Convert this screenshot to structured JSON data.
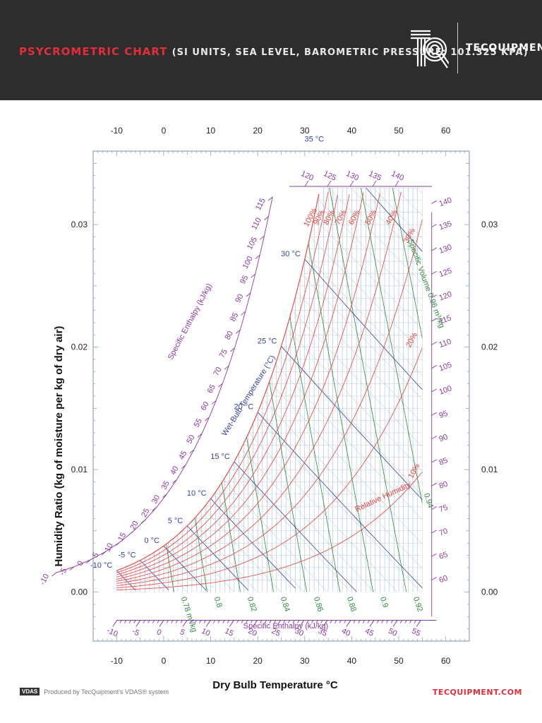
{
  "header": {
    "title_main": "PSYCROMETRIC CHART",
    "title_sub": "(SI UNITS, SEA LEVEL, BAROMETRIC PRESSURE: 101.325 KPA)",
    "brand": "TECQUIPMENT"
  },
  "footer": {
    "vdas_label": "VDAS",
    "produced_by": "Produced by TecQuipment's VDAS® system",
    "website": "TECQUIPMENT.COM"
  },
  "chart_data": {
    "type": "psychrometric",
    "xlabel": "Dry Bulb Temperature °C",
    "ylabel": "Humidity Ratio (kg of moisture per kg of dry air)",
    "xlim": [
      -15,
      65
    ],
    "ylim": [
      -0.004,
      0.036
    ],
    "x_ticks": [
      -10,
      0,
      10,
      20,
      30,
      40,
      50,
      60
    ],
    "y_ticks": [
      0.0,
      0.01,
      0.02,
      0.03
    ],
    "y_tick_labels": [
      "0.00",
      "0.01",
      "0.02",
      "0.03"
    ],
    "dry_bulb_range": [
      -10,
      55
    ],
    "w_max": 0.033,
    "pressure_kpa": 101.325,
    "relative_humidity": {
      "values": [
        100,
        90,
        80,
        70,
        60,
        50,
        40,
        30,
        20,
        10
      ],
      "labels": [
        "100%",
        "90%",
        "80%",
        "70%",
        "60%",
        "50%",
        "40%",
        "30%",
        "20%",
        "10%"
      ],
      "axis_label": "Relative Humidity"
    },
    "wet_bulb": {
      "values": [
        -10,
        -5,
        0,
        5,
        10,
        15,
        20,
        25,
        30,
        35
      ],
      "labels": [
        "-10 °C",
        "-5 °C",
        "0 °C",
        "5 °C",
        "10 °C",
        "15 °C",
        "20 °C",
        "25 °C",
        "30 °C",
        "35 °C"
      ],
      "axis_label": "Wet-Bulb Temperature (°C)"
    },
    "specific_volume": {
      "values": [
        0.78,
        0.8,
        0.82,
        0.84,
        0.86,
        0.88,
        0.9,
        0.92,
        0.94,
        0.96
      ],
      "labels": [
        "0.78 m³/kg",
        "0.8",
        "0.82",
        "0.84",
        "0.86",
        "0.88",
        "0.9",
        "0.92",
        "0.94",
        "Specific Volume 0.96 m³/kg"
      ]
    },
    "enthalpy": {
      "axis_label": "Specific Enthalpy (kJ/kg)",
      "bottom_scale": [
        -10,
        -5,
        0,
        5,
        10,
        15,
        20,
        25,
        30,
        35,
        40,
        45,
        50,
        55
      ],
      "right_scale": [
        60,
        65,
        70,
        75,
        80,
        85,
        90,
        95,
        100,
        105,
        110,
        115,
        120,
        125,
        130,
        135,
        140
      ],
      "left_scale": [
        -10,
        -5,
        0,
        5,
        10,
        15,
        20,
        25,
        30,
        35,
        40,
        45,
        50,
        55,
        60,
        65,
        70,
        75,
        80,
        85,
        90,
        95,
        100,
        105,
        110,
        115
      ],
      "top_scale": [
        120,
        125,
        130,
        135,
        140
      ]
    },
    "colors": {
      "rh": "#e8403a",
      "wet_bulb": "#33449e",
      "volume": "#2e8b3e",
      "enthalpy": "#8a3aa0",
      "temperature": "#8fa8c8",
      "humidity": "#a8b4c8"
    }
  }
}
